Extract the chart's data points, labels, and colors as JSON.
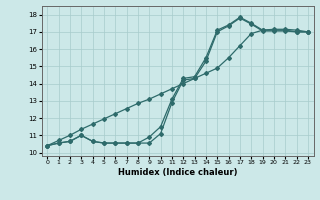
{
  "title": "",
  "xlabel": "Humidex (Indice chaleur)",
  "ylabel": "",
  "bg_color": "#cce8e8",
  "line_color": "#2e6b6b",
  "grid_color": "#a8cccc",
  "xlim": [
    -0.5,
    23.5
  ],
  "ylim": [
    9.8,
    18.5
  ],
  "xticks": [
    0,
    1,
    2,
    3,
    4,
    5,
    6,
    7,
    8,
    9,
    10,
    11,
    12,
    13,
    14,
    15,
    16,
    17,
    18,
    19,
    20,
    21,
    22,
    23
  ],
  "yticks": [
    10,
    11,
    12,
    13,
    14,
    15,
    16,
    17,
    18
  ],
  "line1_x": [
    0,
    1,
    2,
    3,
    4,
    5,
    6,
    7,
    8,
    9,
    10,
    11,
    12,
    13,
    14,
    15,
    16,
    17,
    18,
    19,
    20,
    21,
    22,
    23
  ],
  "line1_y": [
    10.4,
    10.55,
    10.65,
    11.0,
    10.65,
    10.55,
    10.55,
    10.55,
    10.55,
    10.9,
    11.5,
    13.1,
    14.3,
    14.4,
    15.5,
    17.1,
    17.4,
    17.85,
    17.5,
    17.1,
    17.1,
    17.1,
    17.0,
    17.0
  ],
  "line2_x": [
    0,
    1,
    2,
    3,
    4,
    5,
    6,
    7,
    8,
    9,
    10,
    11,
    12,
    13,
    14,
    15,
    16,
    17,
    18,
    19,
    20,
    21,
    22,
    23
  ],
  "line2_y": [
    10.4,
    10.55,
    10.65,
    11.0,
    10.65,
    10.55,
    10.55,
    10.55,
    10.55,
    10.55,
    11.1,
    12.9,
    14.2,
    14.3,
    15.3,
    17.0,
    17.35,
    17.8,
    17.45,
    17.05,
    17.05,
    17.05,
    17.0,
    17.0
  ],
  "line3_x": [
    0,
    1,
    2,
    3,
    4,
    5,
    6,
    7,
    8,
    9,
    10,
    11,
    12,
    13,
    14,
    15,
    16,
    17,
    18,
    19,
    20,
    21,
    22,
    23
  ],
  "line3_y": [
    10.4,
    10.7,
    11.0,
    11.35,
    11.65,
    11.95,
    12.25,
    12.55,
    12.85,
    13.1,
    13.4,
    13.7,
    14.0,
    14.3,
    14.6,
    14.9,
    15.5,
    16.2,
    16.9,
    17.1,
    17.15,
    17.15,
    17.1,
    17.0
  ]
}
